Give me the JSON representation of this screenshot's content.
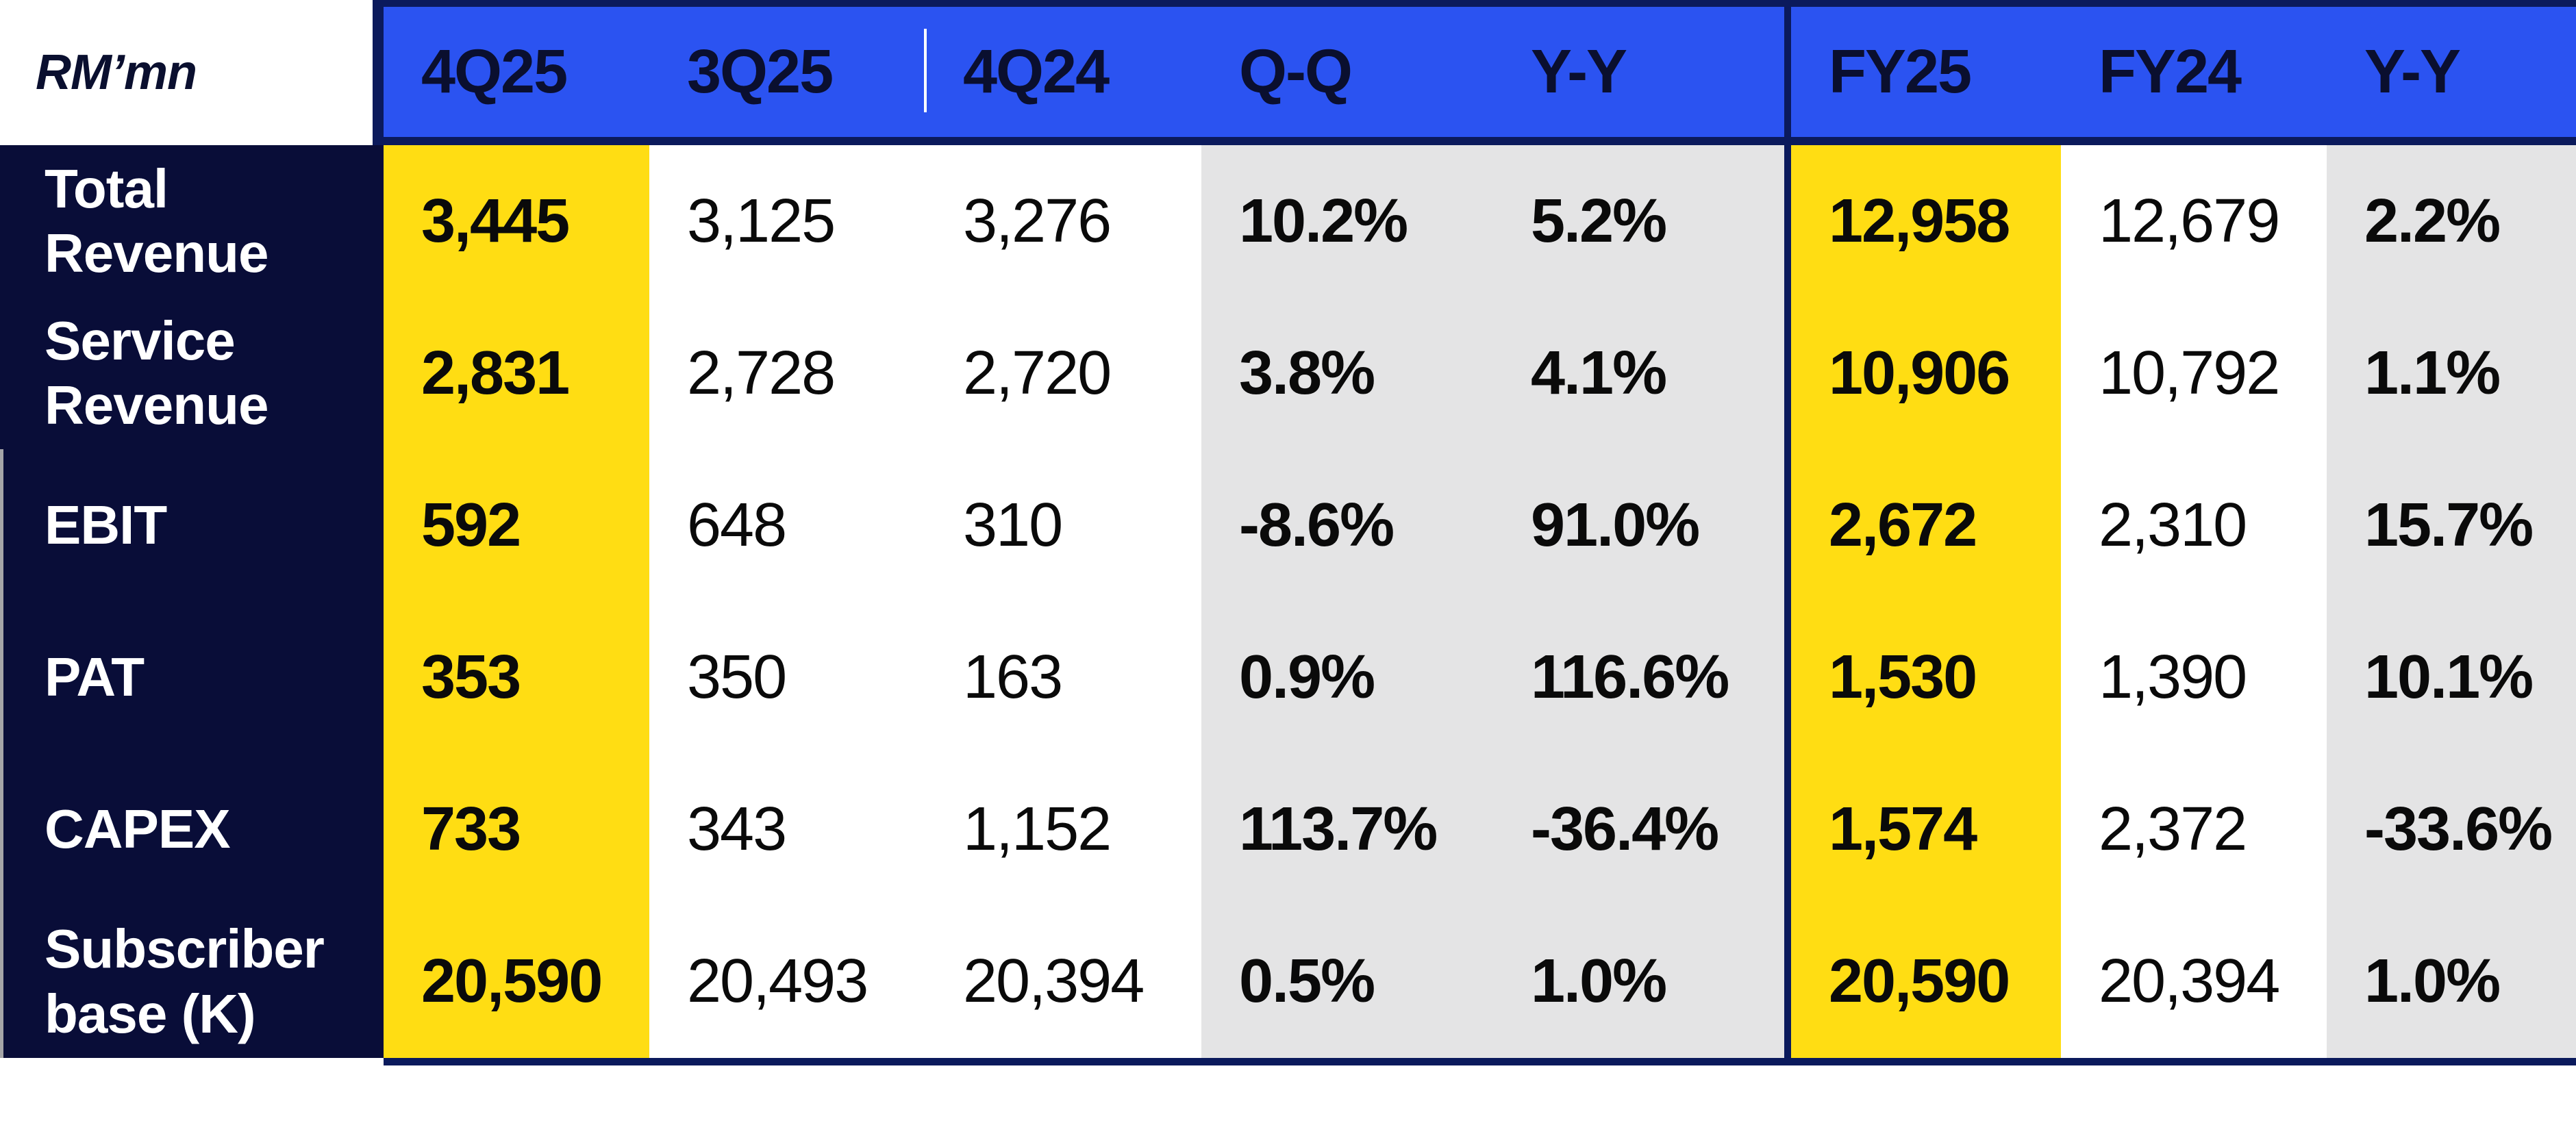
{
  "chart_data": {
    "type": "table",
    "unit": "RM’mn",
    "columns": [
      "4Q25",
      "3Q25",
      "4Q24",
      "Q-Q",
      "Y-Y",
      "FY25",
      "FY24",
      "Y-Y"
    ],
    "rows": [
      {
        "label": "Total Revenue",
        "values": [
          "3,445",
          "3,125",
          "3,276",
          "10.2%",
          "5.2%",
          "12,958",
          "12,679",
          "2.2%"
        ]
      },
      {
        "label": "Service Revenue",
        "values": [
          "2,831",
          "2,728",
          "2,720",
          "3.8%",
          "4.1%",
          "10,906",
          "10,792",
          "1.1%"
        ]
      },
      {
        "label": "EBIT",
        "values": [
          "592",
          "648",
          "310",
          "-8.6%",
          "91.0%",
          "2,672",
          "2,310",
          "15.7%"
        ]
      },
      {
        "label": "PAT",
        "values": [
          "353",
          "350",
          "163",
          "0.9%",
          "116.6%",
          "1,530",
          "1,390",
          "10.1%"
        ]
      },
      {
        "label": "CAPEX",
        "values": [
          "733",
          "343",
          "1,152",
          "113.7%",
          "-36.4%",
          "1,574",
          "2,372",
          "-33.6%"
        ]
      },
      {
        "label": "Subscriber base (K)",
        "values": [
          "20,590",
          "20,493",
          "20,394",
          "0.5%",
          "1.0%",
          "20,590",
          "20,394",
          "1.0%"
        ]
      }
    ],
    "highlight_columns": [
      "4Q25",
      "FY25"
    ],
    "layout_hints": {
      "sections": [
        "quarterly",
        "full-year"
      ],
      "grid": "off"
    },
    "colors": {
      "header_blue": "#2B53F1",
      "label_navy": "#090D38",
      "border_navy": "#0B1A5C",
      "highlight_yellow": "#FFDD13",
      "percent_gray": "#E4E4E5",
      "header_text": "#0A0F2F",
      "label_text": "#FFFFFF",
      "value_text": "#0A0A0A"
    }
  }
}
